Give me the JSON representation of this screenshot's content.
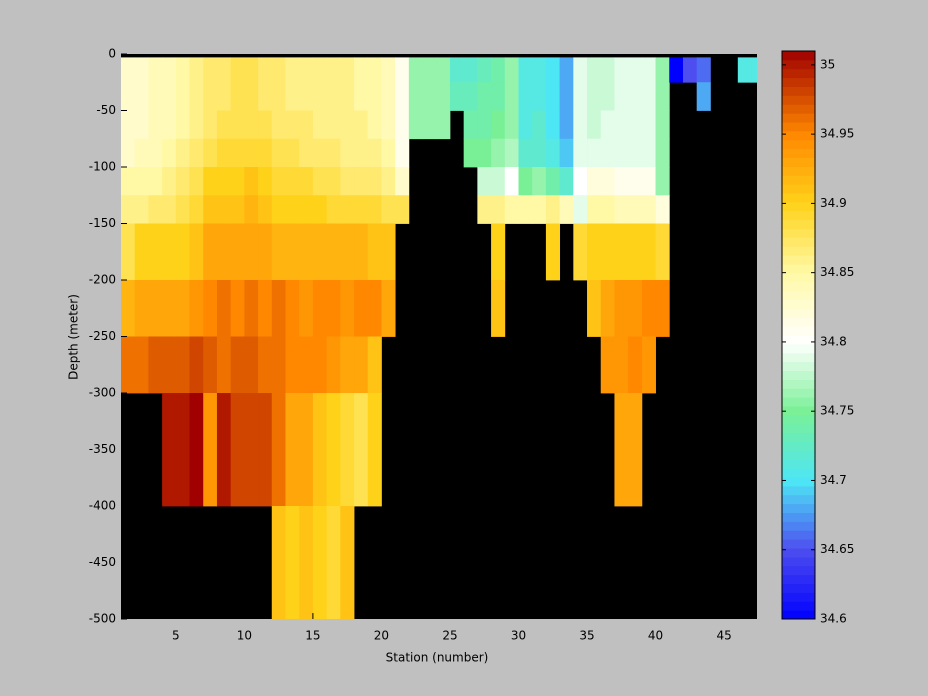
{
  "chart_data": {
    "type": "heatmap",
    "xlabel": "Station (number)",
    "ylabel": "Depth (meter)",
    "x_bins": [
      1,
      2,
      3,
      4,
      5,
      6,
      7,
      8,
      9,
      10,
      11,
      12,
      13,
      14,
      15,
      16,
      17,
      18,
      19,
      20,
      21,
      22,
      23,
      24,
      25,
      26,
      27,
      28,
      29,
      30,
      31,
      32,
      33,
      34,
      35,
      36,
      37,
      38,
      39,
      40,
      41,
      42,
      43,
      44,
      45,
      46,
      47,
      48
    ],
    "y_bins": [
      -3,
      -25,
      -50,
      -75,
      -100,
      -125,
      -150,
      -200,
      -250,
      -300,
      -400,
      -500
    ],
    "values": [
      [
        34.83,
        34.83,
        34.83,
        34.83,
        34.85,
        34.86,
        34.88,
        34.92,
        34.96,
        null,
        null
      ],
      [
        34.83,
        34.83,
        34.83,
        34.84,
        34.85,
        34.86,
        34.9,
        34.93,
        34.96,
        null,
        null
      ],
      [
        34.84,
        34.84,
        34.84,
        34.84,
        34.85,
        34.87,
        34.9,
        34.93,
        34.97,
        null,
        null
      ],
      [
        34.84,
        34.84,
        34.84,
        34.85,
        34.86,
        34.87,
        34.9,
        34.93,
        34.97,
        35.0,
        null
      ],
      [
        34.85,
        34.85,
        34.85,
        34.86,
        34.87,
        34.88,
        34.9,
        34.93,
        34.97,
        35.0,
        null
      ],
      [
        34.86,
        34.86,
        34.86,
        34.87,
        34.88,
        34.89,
        34.91,
        34.94,
        34.98,
        35.01,
        null
      ],
      [
        34.87,
        34.87,
        34.87,
        34.88,
        34.9,
        34.91,
        34.93,
        34.95,
        34.97,
        34.94,
        null
      ],
      [
        34.87,
        34.87,
        34.88,
        34.89,
        34.9,
        34.91,
        34.93,
        34.96,
        34.96,
        35.0,
        null
      ],
      [
        34.88,
        34.88,
        34.88,
        34.89,
        34.9,
        34.91,
        34.93,
        34.95,
        34.97,
        34.98,
        null
      ],
      [
        34.88,
        34.88,
        34.88,
        34.89,
        34.91,
        34.92,
        34.93,
        34.96,
        34.97,
        34.98,
        null
      ],
      [
        34.87,
        34.87,
        34.88,
        34.89,
        34.9,
        34.91,
        34.93,
        34.95,
        34.96,
        34.98,
        null
      ],
      [
        34.87,
        34.87,
        34.87,
        34.88,
        34.89,
        34.9,
        34.92,
        34.96,
        34.96,
        34.96,
        34.91
      ],
      [
        34.86,
        34.86,
        34.87,
        34.88,
        34.89,
        34.9,
        34.92,
        34.95,
        34.95,
        34.93,
        34.9
      ],
      [
        34.86,
        34.86,
        34.87,
        34.87,
        34.89,
        34.9,
        34.92,
        34.94,
        34.95,
        34.93,
        34.91
      ],
      [
        34.86,
        34.86,
        34.86,
        34.87,
        34.88,
        34.9,
        34.92,
        34.95,
        34.95,
        34.91,
        34.9
      ],
      [
        34.86,
        34.86,
        34.86,
        34.87,
        34.88,
        34.89,
        34.92,
        34.95,
        34.94,
        34.9,
        34.89
      ],
      [
        34.86,
        34.86,
        34.86,
        34.86,
        34.87,
        34.89,
        34.92,
        34.94,
        34.93,
        34.89,
        34.91
      ],
      [
        34.85,
        34.85,
        34.86,
        34.86,
        34.87,
        34.89,
        34.92,
        34.95,
        34.93,
        34.88,
        null
      ],
      [
        34.85,
        34.85,
        34.85,
        34.86,
        34.87,
        34.89,
        34.91,
        34.95,
        34.91,
        34.9,
        null
      ],
      [
        34.84,
        34.84,
        34.84,
        34.85,
        34.86,
        34.88,
        34.91,
        34.93,
        null,
        null,
        null
      ],
      [
        34.81,
        34.81,
        34.81,
        34.81,
        34.83,
        34.88,
        null,
        null,
        null,
        null,
        null
      ],
      [
        34.76,
        34.76,
        34.76,
        null,
        null,
        null,
        null,
        null,
        null,
        null,
        null
      ],
      [
        34.76,
        34.76,
        34.76,
        null,
        null,
        null,
        null,
        null,
        null,
        null,
        null
      ],
      [
        34.76,
        34.76,
        34.76,
        null,
        null,
        null,
        null,
        null,
        null,
        null,
        null
      ],
      [
        34.72,
        34.73,
        null,
        null,
        null,
        null,
        null,
        null,
        null,
        null,
        null
      ],
      [
        34.72,
        34.73,
        34.74,
        34.75,
        null,
        null,
        null,
        null,
        null,
        null,
        null
      ],
      [
        34.73,
        34.74,
        34.74,
        34.75,
        34.78,
        34.86,
        null,
        null,
        null,
        null,
        null
      ],
      [
        34.74,
        34.74,
        34.75,
        34.76,
        34.78,
        34.86,
        34.9,
        34.91,
        null,
        null,
        null
      ],
      [
        34.76,
        34.76,
        34.76,
        34.77,
        34.8,
        34.85,
        null,
        null,
        null,
        null,
        null
      ],
      [
        34.71,
        34.71,
        34.71,
        34.72,
        34.75,
        34.85,
        null,
        null,
        null,
        null,
        null
      ],
      [
        34.71,
        34.71,
        34.72,
        34.72,
        34.76,
        34.85,
        null,
        null,
        null,
        null,
        null
      ],
      [
        34.7,
        34.7,
        34.7,
        34.71,
        34.74,
        34.86,
        34.9,
        null,
        null,
        null,
        null
      ],
      [
        34.68,
        34.68,
        34.68,
        34.69,
        34.72,
        34.84,
        null,
        null,
        null,
        null,
        null
      ],
      [
        34.79,
        34.79,
        34.79,
        34.79,
        34.8,
        34.79,
        34.89,
        null,
        null,
        null,
        null
      ],
      [
        34.78,
        34.78,
        34.78,
        34.79,
        34.82,
        34.85,
        34.9,
        34.91,
        null,
        null,
        null
      ],
      [
        34.78,
        34.78,
        34.79,
        34.79,
        34.82,
        34.85,
        34.9,
        34.93,
        34.94,
        null,
        null
      ],
      [
        34.79,
        34.79,
        34.79,
        34.79,
        34.81,
        34.84,
        34.9,
        34.94,
        34.94,
        34.93,
        null
      ],
      [
        34.79,
        34.79,
        34.79,
        34.79,
        34.81,
        34.84,
        34.9,
        34.94,
        34.95,
        34.93,
        null
      ],
      [
        34.79,
        34.79,
        34.79,
        34.79,
        34.81,
        34.84,
        34.9,
        34.95,
        34.94,
        null,
        null
      ],
      [
        34.76,
        34.76,
        34.76,
        34.76,
        34.76,
        34.82,
        34.89,
        34.95,
        null,
        null,
        null
      ],
      [
        34.6,
        null,
        null,
        null,
        null,
        null,
        null,
        null,
        null,
        null,
        null
      ],
      [
        34.65,
        null,
        null,
        null,
        null,
        null,
        null,
        null,
        null,
        null,
        null
      ],
      [
        34.66,
        34.68,
        null,
        null,
        null,
        null,
        null,
        null,
        null,
        null,
        null
      ],
      [
        null,
        null,
        null,
        null,
        null,
        null,
        null,
        null,
        null,
        null,
        null
      ],
      [
        null,
        null,
        null,
        null,
        null,
        null,
        null,
        null,
        null,
        null,
        null
      ],
      [
        34.71,
        null,
        null,
        null,
        null,
        null,
        null,
        null,
        null,
        null,
        null
      ],
      [
        34.71,
        null,
        null,
        null,
        null,
        null,
        null,
        null,
        null,
        null,
        null
      ]
    ],
    "xlim": [
      1,
      47.4
    ],
    "xticks": [
      5,
      10,
      15,
      20,
      25,
      30,
      35,
      40,
      45
    ],
    "ylim": [
      -500,
      0
    ],
    "yticks": [
      0,
      -50,
      -100,
      -150,
      -200,
      -250,
      -300,
      -350,
      -400,
      -450,
      -500
    ],
    "axis_background": "#000000",
    "clim": [
      34.6,
      35.01
    ],
    "cticks": [
      34.6,
      34.65,
      34.7,
      34.75,
      34.8,
      34.85,
      34.9,
      34.95,
      35
    ],
    "colormap": [
      {
        "value": 34.6,
        "color": "#0000ff"
      },
      {
        "value": 34.65,
        "color": "#4d4df0"
      },
      {
        "value": 34.7,
        "color": "#4de6f5"
      },
      {
        "value": 34.75,
        "color": "#7af096"
      },
      {
        "value": 34.8,
        "color": "#ffffff"
      },
      {
        "value": 34.85,
        "color": "#fff9a6"
      },
      {
        "value": 34.9,
        "color": "#ffd21a"
      },
      {
        "value": 34.95,
        "color": "#ff8800"
      },
      {
        "value": 35.0,
        "color": "#b01800"
      },
      {
        "value": 35.01,
        "color": "#a00000"
      }
    ]
  }
}
